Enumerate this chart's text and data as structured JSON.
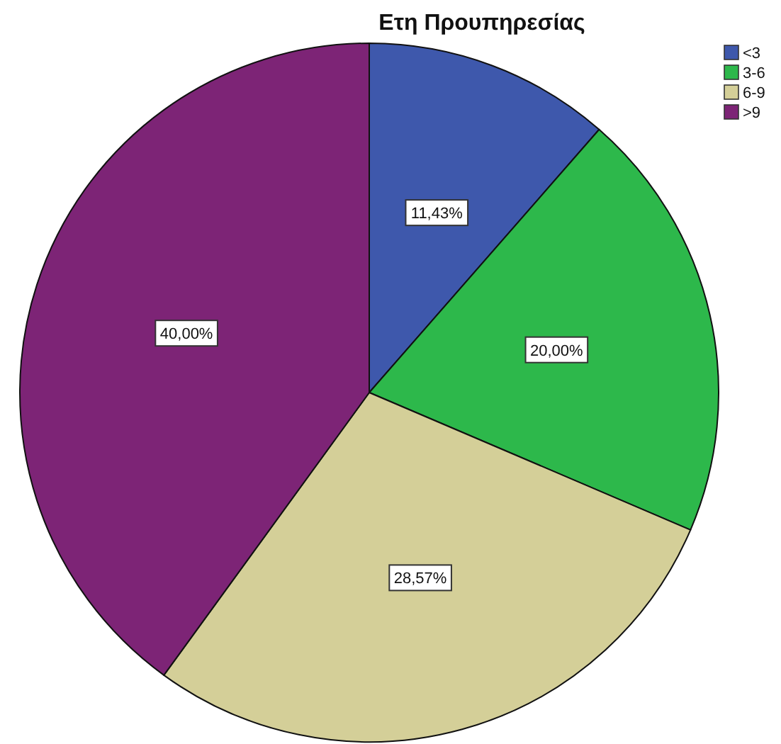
{
  "chart_data": {
    "type": "pie",
    "title": "Ετη Προυπηρεσίας",
    "categories": [
      "<3",
      "3-6",
      "6-9",
      ">9"
    ],
    "values": [
      11.43,
      20.0,
      28.57,
      40.0
    ],
    "colors": [
      "#3e58ac",
      "#2db84b",
      "#d4cf98",
      "#7d2476"
    ],
    "value_labels": [
      "11,43%",
      "20,00%",
      "28,57%",
      "40,00%"
    ],
    "legend": "top right"
  }
}
